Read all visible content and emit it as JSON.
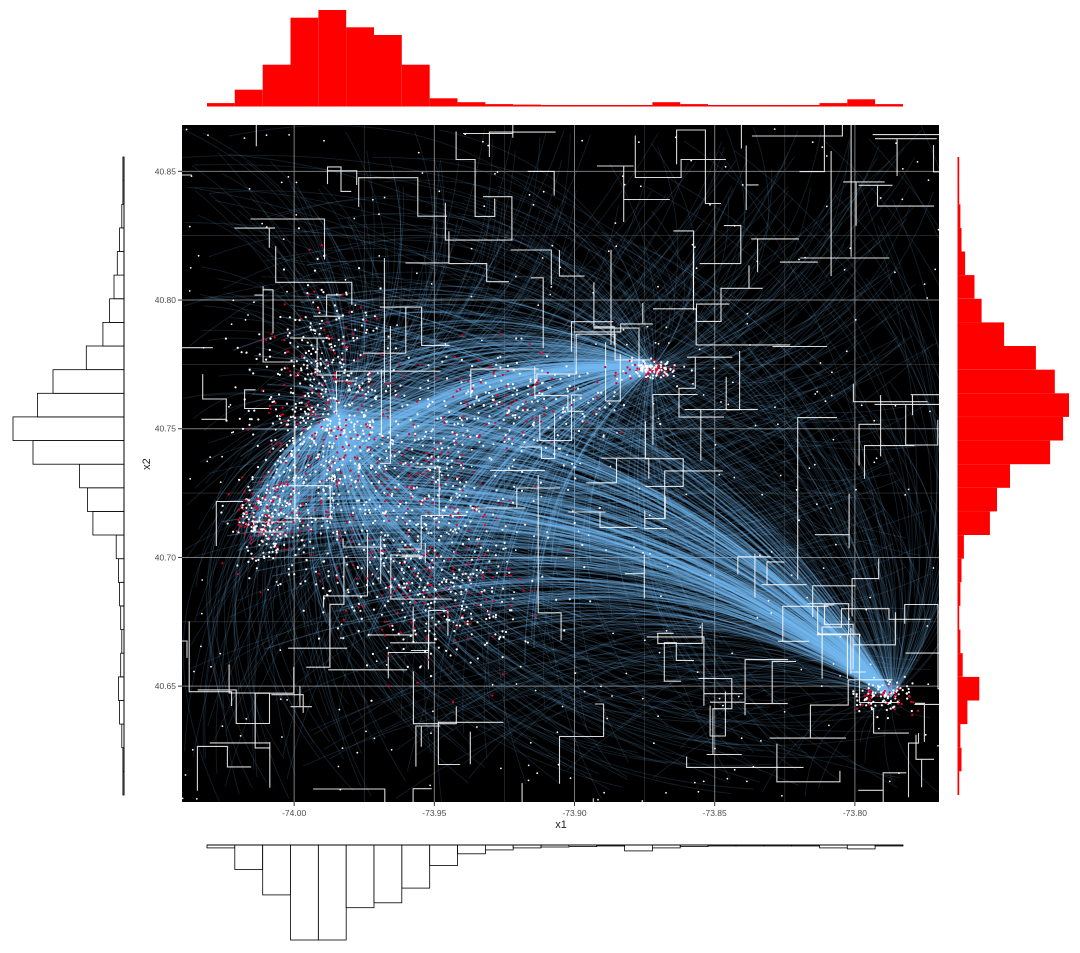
{
  "chart_data": [
    {
      "type": "scatter",
      "subtype": "map-with-flow-curves",
      "xlabel": "x1",
      "ylabel": "x2",
      "xlim": [
        -74.04,
        -73.77
      ],
      "ylim": [
        40.605,
        40.868
      ],
      "x_ticks": [
        -74.0,
        -73.95,
        -73.9,
        -73.85,
        -73.8
      ],
      "y_ticks": [
        40.65,
        40.7,
        40.75,
        40.8,
        40.85
      ],
      "x_tick_labels": [
        "-74.00",
        "-73.95",
        "-73.90",
        "-73.85",
        "-73.80"
      ],
      "y_tick_labels": [
        "40.65",
        "40.70",
        "40.75",
        "40.80",
        "40.85"
      ],
      "grid": true,
      "legend": "none",
      "colors": {
        "panel_background": "#000000",
        "grid": "#7a7a7a",
        "boundaries": "#ffffff",
        "flow_lines": "#74b9f2",
        "pickup_points": "#ffffff",
        "dropoff_points": "#e0002a"
      },
      "hubs": [
        {
          "x": -73.985,
          "y": 40.755
        },
        {
          "x": -73.872,
          "y": 40.774
        },
        {
          "x": -73.787,
          "y": 40.646
        }
      ],
      "point_clusters": [
        {
          "x": -73.99,
          "y": 40.755,
          "sx": 0.012,
          "sy": 0.025,
          "weight": 5
        },
        {
          "x": -74.01,
          "y": 40.715,
          "sx": 0.006,
          "sy": 0.008,
          "weight": 2
        },
        {
          "x": -73.955,
          "y": 40.735,
          "sx": 0.022,
          "sy": 0.02,
          "weight": 3
        },
        {
          "x": -73.95,
          "y": 40.69,
          "sx": 0.02,
          "sy": 0.015,
          "weight": 3
        },
        {
          "x": -73.92,
          "y": 40.76,
          "sx": 0.02,
          "sy": 0.01,
          "weight": 2
        },
        {
          "x": -73.872,
          "y": 40.773,
          "sx": 0.004,
          "sy": 0.002,
          "weight": 1
        },
        {
          "x": -73.79,
          "y": 40.646,
          "sx": 0.006,
          "sy": 0.003,
          "weight": 1
        }
      ]
    },
    {
      "type": "bar",
      "subtype": "histogram-top",
      "variable": "x1",
      "fill": "#ff0000",
      "bins_x": [
        -74.025,
        -74.015,
        -74.005,
        -73.995,
        -73.985,
        -73.975,
        -73.965,
        -73.955,
        -73.945,
        -73.935,
        -73.925,
        -73.915,
        -73.905,
        -73.895,
        -73.885,
        -73.875,
        -73.865,
        -73.855,
        -73.845,
        -73.835,
        -73.825,
        -73.815,
        -73.805,
        -73.795,
        -73.785
      ],
      "values": [
        3,
        17,
        43,
        92,
        100,
        82,
        74,
        43,
        8,
        4,
        2,
        1.5,
        1,
        1,
        1,
        1,
        4,
        2,
        1,
        1,
        1,
        1,
        3,
        7,
        2
      ]
    },
    {
      "type": "bar",
      "subtype": "histogram-bottom",
      "variable": "x1",
      "fill": "#ffffff",
      "bins_x": [
        -74.025,
        -74.015,
        -74.005,
        -73.995,
        -73.985,
        -73.975,
        -73.965,
        -73.955,
        -73.945,
        -73.935,
        -73.925,
        -73.915,
        -73.905,
        -73.895,
        -73.885,
        -73.875,
        -73.865,
        -73.855,
        -73.845,
        -73.835,
        -73.825,
        -73.815,
        -73.805,
        -73.795,
        -73.785
      ],
      "values": [
        3,
        25,
        51,
        97,
        97,
        64,
        59,
        44,
        21,
        9,
        5,
        3,
        2,
        1.5,
        1,
        6,
        3,
        1.5,
        1,
        1,
        1,
        1,
        3,
        4,
        1
      ]
    },
    {
      "type": "bar",
      "subtype": "histogram-left",
      "variable": "x2",
      "fill": "#ffffff",
      "bins_y": [
        40.605,
        40.615,
        40.625,
        40.635,
        40.645,
        40.655,
        40.665,
        40.675,
        40.685,
        40.695,
        40.705,
        40.715,
        40.725,
        40.735,
        40.745,
        40.755,
        40.765,
        40.775,
        40.785,
        40.795,
        40.805,
        40.815,
        40.825,
        40.835,
        40.845,
        40.855,
        40.865
      ],
      "values": [
        1,
        1,
        2,
        4,
        5,
        3,
        2,
        3,
        4,
        5,
        7,
        28,
        33,
        40,
        82,
        100,
        78,
        64,
        34,
        19,
        13,
        9,
        6,
        4,
        2,
        1,
        1
      ]
    },
    {
      "type": "bar",
      "subtype": "histogram-right",
      "variable": "x2",
      "fill": "#ff0000",
      "bins_y": [
        40.605,
        40.615,
        40.625,
        40.635,
        40.645,
        40.655,
        40.665,
        40.675,
        40.685,
        40.695,
        40.705,
        40.715,
        40.725,
        40.735,
        40.745,
        40.755,
        40.765,
        40.775,
        40.785,
        40.795,
        40.805,
        40.815,
        40.825,
        40.835,
        40.845,
        40.855,
        40.865
      ],
      "values": [
        1,
        3,
        2,
        8,
        18,
        4,
        2,
        1,
        2,
        3,
        5,
        27,
        33,
        44,
        78,
        89,
        94,
        82,
        66,
        39,
        20,
        14,
        6,
        3,
        2,
        1,
        1
      ]
    }
  ]
}
